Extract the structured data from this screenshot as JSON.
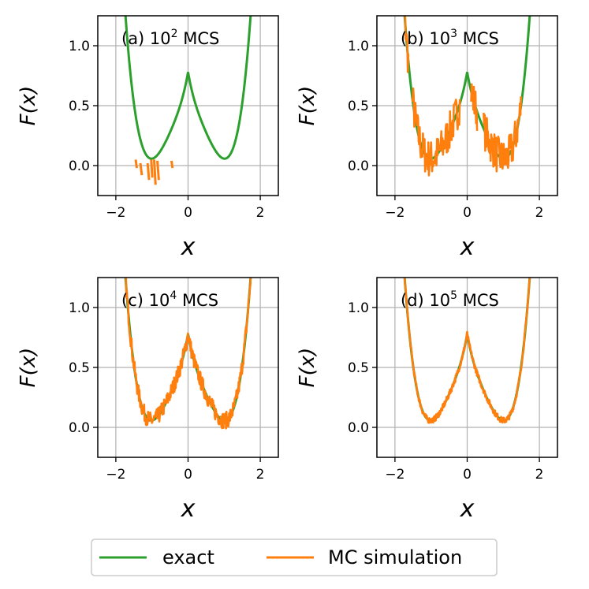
{
  "chart_data": [
    {
      "type": "line",
      "panel": "a",
      "title": {
        "prefix": "(a) 10",
        "exp": "2",
        "suffix": " MCS"
      },
      "xlabel": "x",
      "ylabel": "F(x)",
      "xlim": [
        -2.5,
        2.5
      ],
      "ylim": [
        -0.25,
        1.25
      ],
      "xticks": [
        -2,
        0,
        2
      ],
      "yticks": [
        0.0,
        0.5,
        1.0
      ],
      "xtick_labels": [
        "−2",
        "0",
        "2"
      ],
      "ytick_labels": [
        "0.0",
        "0.5",
        "1.0"
      ],
      "series": [
        {
          "name": "exact",
          "color": "#2ca02c",
          "function": "0.3*(x^2-1)^2 + 0.05 + 0.43*exp(-|x|/0.25)"
        },
        {
          "name": "MC simulation",
          "color": "#ff7f0e",
          "x_range": [
            -1.45,
            -0.4
          ],
          "segments": [
            [
              -1.45,
              0.05,
              -1.42,
              -0.02
            ],
            [
              -1.32,
              0.02,
              -1.28,
              -0.08
            ],
            [
              -1.12,
              0.02,
              -1.08,
              -0.12
            ],
            [
              -1.02,
              0.05,
              -0.99,
              -0.1
            ],
            [
              -0.94,
              0.05,
              -0.9,
              -0.16
            ],
            [
              -0.85,
              0.04,
              -0.81,
              -0.12
            ],
            [
              -0.46,
              0.04,
              -0.43,
              -0.02
            ]
          ]
        }
      ]
    },
    {
      "type": "line",
      "panel": "b",
      "title": {
        "prefix": "(b) 10",
        "exp": "3",
        "suffix": " MCS"
      },
      "xlabel": "x",
      "ylabel": "F(x)",
      "xlim": [
        -2.5,
        2.5
      ],
      "ylim": [
        -0.25,
        1.25
      ],
      "xticks": [
        -2,
        0,
        2
      ],
      "yticks": [
        0.0,
        0.5,
        1.0
      ],
      "xtick_labels": [
        "−2",
        "0",
        "2"
      ],
      "ytick_labels": [
        "0.0",
        "0.5",
        "1.0"
      ],
      "series": [
        {
          "name": "exact",
          "color": "#2ca02c",
          "function": "0.3*(x^2-1)^2 + 0.05 + 0.43*exp(-|x|/0.25)"
        },
        {
          "name": "MC simulation",
          "color": "#ff7f0e",
          "x_range": [
            -1.9,
            1.5
          ],
          "noise": 0.16,
          "offset": 0.0,
          "gaps": [
            [
              -1.62,
              -1.52
            ],
            [
              -0.2,
              0.1
            ],
            [
              0.28,
              0.45
            ]
          ],
          "dx": 0.015
        }
      ]
    },
    {
      "type": "line",
      "panel": "c",
      "title": {
        "prefix": "(c) 10",
        "exp": "4",
        "suffix": " MCS"
      },
      "xlabel": "x",
      "ylabel": "F(x)",
      "xlim": [
        -2.5,
        2.5
      ],
      "ylim": [
        -0.25,
        1.25
      ],
      "xticks": [
        -2,
        0,
        2
      ],
      "yticks": [
        0.0,
        0.5,
        1.0
      ],
      "xtick_labels": [
        "−2",
        "0",
        "2"
      ],
      "ytick_labels": [
        "0.0",
        "0.5",
        "1.0"
      ],
      "series": [
        {
          "name": "exact",
          "color": "#2ca02c",
          "function": "0.3*(x^2-1)^2 + 0.05 + 0.43*exp(-|x|/0.25)"
        },
        {
          "name": "MC simulation",
          "color": "#ff7f0e",
          "x_range": [
            -1.9,
            1.9
          ],
          "noise": 0.07,
          "offset": 0.0,
          "gaps": [],
          "dx": 0.012
        }
      ]
    },
    {
      "type": "line",
      "panel": "d",
      "title": {
        "prefix": "(d) 10",
        "exp": "5",
        "suffix": " MCS"
      },
      "xlabel": "x",
      "ylabel": "F(x)",
      "xlim": [
        -2.5,
        2.5
      ],
      "ylim": [
        -0.25,
        1.25
      ],
      "xticks": [
        -2,
        0,
        2
      ],
      "yticks": [
        0.0,
        0.5,
        1.0
      ],
      "xtick_labels": [
        "−2",
        "0",
        "2"
      ],
      "ytick_labels": [
        "0.0",
        "0.5",
        "1.0"
      ],
      "series": [
        {
          "name": "exact",
          "color": "#2ca02c",
          "function": "0.3*(x^2-1)^2 + 0.05 + 0.43*exp(-|x|/0.25)"
        },
        {
          "name": "MC simulation",
          "color": "#ff7f0e",
          "x_range": [
            -2.2,
            2.25
          ],
          "noise": 0.025,
          "offset": 0.0,
          "gaps": [],
          "dx": 0.01
        }
      ]
    }
  ],
  "legend": {
    "entries": [
      {
        "label": "exact",
        "color": "#2ca02c"
      },
      {
        "label": "MC simulation",
        "color": "#ff7f0e"
      }
    ],
    "placement": "bottom-center"
  }
}
